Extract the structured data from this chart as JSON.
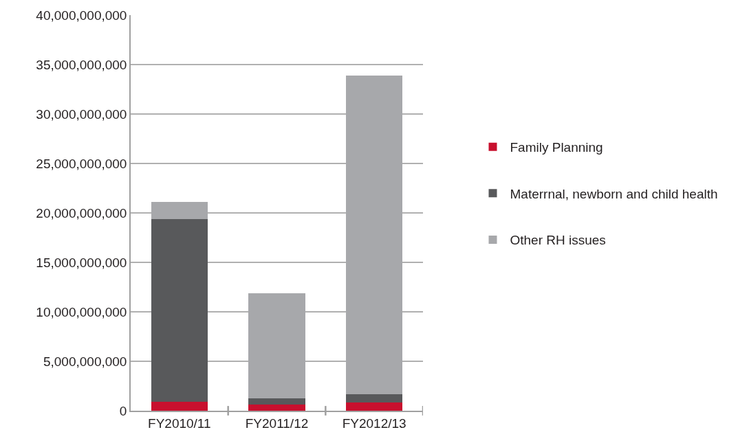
{
  "chart_data": {
    "type": "bar",
    "stacked": true,
    "categories": [
      "FY2010/11",
      "FY2011/12",
      "FY2012/13"
    ],
    "series": [
      {
        "name": "Family Planning",
        "color": "#c8102e",
        "values": [
          900000000,
          650000000,
          850000000
        ]
      },
      {
        "name": "Materrnal, newborn and child health",
        "color": "#58595b",
        "values": [
          18500000000,
          600000000,
          850000000
        ]
      },
      {
        "name": "Other RH issues",
        "color": "#a7a8ab",
        "values": [
          1700000000,
          10600000000,
          32200000000
        ]
      }
    ],
    "ylim": [
      0,
      40000000000
    ],
    "yticks": [
      {
        "value": 0,
        "label": "0"
      },
      {
        "value": 5000000000,
        "label": "5,000,000,000"
      },
      {
        "value": 10000000000,
        "label": "10,000,000,000"
      },
      {
        "value": 15000000000,
        "label": "15,000,000,000"
      },
      {
        "value": 20000000000,
        "label": "20,000,000,000"
      },
      {
        "value": 25000000000,
        "label": "25,000,000,000"
      },
      {
        "value": 30000000000,
        "label": "30,000,000,000"
      },
      {
        "value": 35000000000,
        "label": "35,000,000,000"
      },
      {
        "value": 40000000000,
        "label": "40,000,000,000"
      }
    ],
    "grid": "y",
    "legend": "right"
  }
}
